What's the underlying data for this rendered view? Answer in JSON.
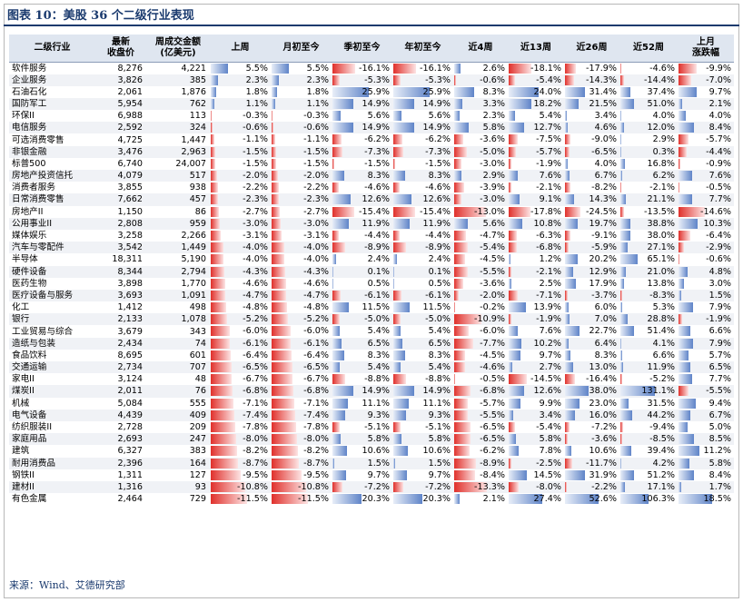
{
  "caption": "图表 10：美股 36 个二级行业表现",
  "source": "来源：Wind、艾德研究部",
  "headers": [
    "二级行业",
    "最新\n收盘价",
    "周成交金额\n(亿美元)",
    "上周",
    "月初至今",
    "季初至今",
    "年初至今",
    "近4周",
    "近13周",
    "近26周",
    "近52周",
    "上月\n涨跌幅"
  ],
  "rows": [
    [
      "软件服务",
      "8,276",
      "4,221",
      "5.5%",
      "5.5%",
      "-16.1%",
      "-16.1%",
      "2.6%",
      "-18.1%",
      "-17.9%",
      "-4.6%",
      "-9.9%"
    ],
    [
      "企业服务",
      "3,826",
      "385",
      "2.3%",
      "2.3%",
      "-5.3%",
      "-5.3%",
      "-0.6%",
      "-5.4%",
      "-14.3%",
      "-14.4%",
      "-7.0%"
    ],
    [
      "石油石化",
      "2,061",
      "1,876",
      "1.8%",
      "1.8%",
      "25.9%",
      "25.9%",
      "8.3%",
      "24.0%",
      "31.4%",
      "37.4%",
      "9.7%"
    ],
    [
      "国防军工",
      "5,954",
      "762",
      "1.1%",
      "1.1%",
      "14.9%",
      "14.9%",
      "3.3%",
      "18.2%",
      "21.5%",
      "51.0%",
      "2.1%"
    ],
    [
      "环保II",
      "6,988",
      "113",
      "-0.3%",
      "-0.3%",
      "5.6%",
      "5.6%",
      "2.3%",
      "5.4%",
      "3.4%",
      "4.0%",
      "4.0%"
    ],
    [
      "电信服务",
      "2,592",
      "324",
      "-0.6%",
      "-0.6%",
      "14.9%",
      "14.9%",
      "5.8%",
      "12.7%",
      "4.6%",
      "12.0%",
      "8.4%"
    ],
    [
      "可选消费零售",
      "4,725",
      "1,447",
      "-1.1%",
      "-1.1%",
      "-6.2%",
      "-6.2%",
      "-3.6%",
      "-7.5%",
      "-9.0%",
      "2.9%",
      "-5.7%"
    ],
    [
      "非银金融",
      "3,476",
      "2,963",
      "-1.5%",
      "-1.5%",
      "-7.3%",
      "-7.3%",
      "-5.0%",
      "-5.7%",
      "-6.5%",
      "0.3%",
      "-4.4%"
    ],
    [
      "标普500",
      "6,740",
      "24,007",
      "-1.5%",
      "-1.5%",
      "-1.5%",
      "-1.5%",
      "-3.0%",
      "-1.9%",
      "4.0%",
      "16.8%",
      "-0.9%"
    ],
    [
      "房地产投资信托",
      "4,079",
      "517",
      "-2.0%",
      "-2.0%",
      "8.3%",
      "8.3%",
      "2.9%",
      "7.6%",
      "6.7%",
      "6.2%",
      "7.6%"
    ],
    [
      "消费者服务",
      "3,855",
      "938",
      "-2.2%",
      "-2.2%",
      "-4.6%",
      "-4.6%",
      "-3.9%",
      "-2.1%",
      "-8.2%",
      "-2.1%",
      "-0.5%"
    ],
    [
      "日常消费零售",
      "7,662",
      "457",
      "-2.3%",
      "-2.3%",
      "12.6%",
      "12.6%",
      "-3.0%",
      "9.1%",
      "14.3%",
      "21.1%",
      "7.7%"
    ],
    [
      "房地产II",
      "1,150",
      "86",
      "-2.7%",
      "-2.7%",
      "-15.4%",
      "-15.4%",
      "-13.0%",
      "-17.8%",
      "-24.5%",
      "-13.5%",
      "-14.6%"
    ],
    [
      "公用事业II",
      "2,808",
      "959",
      "-3.0%",
      "-3.0%",
      "11.9%",
      "11.9%",
      "5.6%",
      "10.8%",
      "19.7%",
      "38.8%",
      "10.3%"
    ],
    [
      "媒体娱乐",
      "3,258",
      "2,266",
      "-3.1%",
      "-3.1%",
      "-4.4%",
      "-4.4%",
      "-4.7%",
      "-6.3%",
      "-9.1%",
      "38.0%",
      "-6.4%"
    ],
    [
      "汽车与零配件",
      "3,542",
      "1,449",
      "-4.0%",
      "-4.0%",
      "-8.9%",
      "-8.9%",
      "-5.4%",
      "-6.8%",
      "-5.9%",
      "27.1%",
      "-2.9%"
    ],
    [
      "半导体",
      "18,311",
      "5,190",
      "-4.0%",
      "-4.0%",
      "2.4%",
      "2.4%",
      "-4.5%",
      "1.2%",
      "20.2%",
      "65.1%",
      "-0.6%"
    ],
    [
      "硬件设备",
      "8,344",
      "2,794",
      "-4.3%",
      "-4.3%",
      "0.1%",
      "0.1%",
      "-5.5%",
      "-2.1%",
      "12.9%",
      "21.0%",
      "4.8%"
    ],
    [
      "医药生物",
      "3,898",
      "1,770",
      "-4.6%",
      "-4.6%",
      "0.5%",
      "0.5%",
      "-3.6%",
      "2.5%",
      "17.9%",
      "13.8%",
      "3.0%"
    ],
    [
      "医疗设备与服务",
      "3,693",
      "1,091",
      "-4.7%",
      "-4.7%",
      "-6.1%",
      "-6.1%",
      "-2.0%",
      "-7.1%",
      "-3.7%",
      "-8.3%",
      "1.5%"
    ],
    [
      "化工",
      "1,412",
      "498",
      "-4.8%",
      "-4.8%",
      "11.5%",
      "11.5%",
      "-0.2%",
      "13.9%",
      "6.0%",
      "5.3%",
      "7.9%"
    ],
    [
      "银行",
      "2,133",
      "1,078",
      "-5.2%",
      "-5.2%",
      "-5.0%",
      "-5.0%",
      "-10.9%",
      "-1.9%",
      "7.0%",
      "28.8%",
      "-1.9%"
    ],
    [
      "工业贸易与综合",
      "3,679",
      "343",
      "-6.0%",
      "-6.0%",
      "5.4%",
      "5.4%",
      "-6.0%",
      "7.6%",
      "22.7%",
      "51.4%",
      "6.6%"
    ],
    [
      "造纸与包装",
      "2,434",
      "74",
      "-6.1%",
      "-6.1%",
      "6.5%",
      "6.5%",
      "-7.7%",
      "10.2%",
      "6.4%",
      "4.1%",
      "7.9%"
    ],
    [
      "食品饮料",
      "8,695",
      "601",
      "-6.4%",
      "-6.4%",
      "8.3%",
      "8.3%",
      "-4.5%",
      "9.7%",
      "8.3%",
      "6.6%",
      "5.7%"
    ],
    [
      "交通运输",
      "2,734",
      "707",
      "-6.5%",
      "-6.5%",
      "5.4%",
      "5.4%",
      "-4.6%",
      "2.7%",
      "13.0%",
      "11.9%",
      "6.5%"
    ],
    [
      "家电II",
      "3,124",
      "48",
      "-6.7%",
      "-6.7%",
      "-8.8%",
      "-8.8%",
      "-0.5%",
      "-14.5%",
      "-16.4%",
      "-5.2%",
      "7.7%"
    ],
    [
      "煤炭II",
      "2,011",
      "76",
      "-6.8%",
      "-6.8%",
      "14.9%",
      "14.9%",
      "-6.8%",
      "12.6%",
      "38.0%",
      "131.1%",
      "-5.5%"
    ],
    [
      "机械",
      "5,084",
      "555",
      "-7.1%",
      "-7.1%",
      "11.1%",
      "11.1%",
      "-5.7%",
      "9.9%",
      "23.0%",
      "31.5%",
      "9.4%"
    ],
    [
      "电气设备",
      "4,439",
      "409",
      "-7.4%",
      "-7.4%",
      "9.3%",
      "9.3%",
      "-5.5%",
      "3.4%",
      "16.0%",
      "44.2%",
      "6.7%"
    ],
    [
      "纺织服装II",
      "2,728",
      "209",
      "-7.8%",
      "-7.8%",
      "-5.1%",
      "-5.1%",
      "-6.5%",
      "-5.4%",
      "-7.2%",
      "-9.4%",
      "5.0%"
    ],
    [
      "家庭用品",
      "2,693",
      "247",
      "-8.0%",
      "-8.0%",
      "5.8%",
      "5.8%",
      "-6.5%",
      "5.8%",
      "-3.6%",
      "-8.5%",
      "8.5%"
    ],
    [
      "建筑",
      "6,327",
      "383",
      "-8.2%",
      "-8.2%",
      "10.6%",
      "10.6%",
      "-6.2%",
      "7.8%",
      "10.6%",
      "39.4%",
      "11.2%"
    ],
    [
      "耐用消费品",
      "2,396",
      "164",
      "-8.7%",
      "-8.7%",
      "1.5%",
      "1.5%",
      "-8.9%",
      "-2.5%",
      "-11.7%",
      "4.2%",
      "5.8%"
    ],
    [
      "钢铁II",
      "1,311",
      "127",
      "-9.5%",
      "-9.5%",
      "9.7%",
      "9.7%",
      "-8.4%",
      "14.5%",
      "31.9%",
      "51.2%",
      "8.4%"
    ],
    [
      "建材II",
      "1,316",
      "93",
      "-10.8%",
      "-10.8%",
      "-7.2%",
      "-7.2%",
      "-13.3%",
      "-8.0%",
      "-2.2%",
      "17.1%",
      "1.7%"
    ],
    [
      "有色金属",
      "2,464",
      "729",
      "-11.5%",
      "-11.5%",
      "20.3%",
      "20.3%",
      "2.1%",
      "27.4%",
      "52.6%",
      "106.3%",
      "18.5%"
    ]
  ],
  "colors": {
    "positive_bar": "#5f84c8",
    "negative_bar": "#e0302b",
    "header_bg": "#dfe6f0",
    "title": "#1a3a6e"
  }
}
